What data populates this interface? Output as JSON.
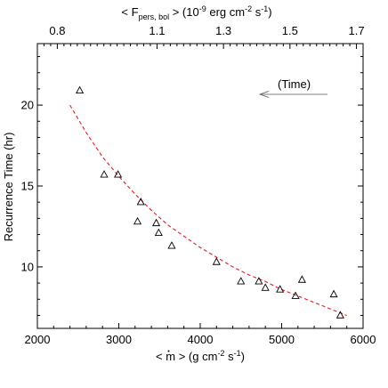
{
  "chart_data": {
    "type": "scatter",
    "title": "",
    "xlabel": {
      "prefix": "< ",
      "mdot": "m",
      "rest": " > (g cm",
      "sup1": "-2",
      "mid": " s",
      "sup2": "-1",
      "end": ")"
    },
    "ylabel": "Recurrence Time (hr)",
    "top_axis_label": {
      "start": "< F",
      "sub": "pers, bol",
      "mid": " > (10",
      "sup1": "-9",
      "mid2": " erg cm",
      "sup2": "-2",
      "mid3": " s",
      "sup3": "-1",
      "end": ")"
    },
    "xlim": [
      2000,
      6000
    ],
    "ylim": [
      6.2,
      23.8
    ],
    "top_xlim": [
      0.74,
      1.72
    ],
    "x_ticks": [
      2000,
      3000,
      4000,
      5000,
      6000
    ],
    "x_tick_labels": [
      "2000",
      "3000",
      "4000",
      "5000",
      "6000"
    ],
    "y_ticks": [
      10,
      15,
      20
    ],
    "y_tick_labels": [
      "10",
      "15",
      "20"
    ],
    "top_ticks": [
      0.8,
      1.1,
      1.3,
      1.5,
      1.7
    ],
    "top_tick_labels": [
      "0.8",
      "1.1",
      "1.3",
      "1.5",
      "1.7"
    ],
    "annotation": "(Time)",
    "annotation_position": "upper-right, with arrow pointing left",
    "grid": false,
    "legend": "none",
    "series": [
      {
        "marker": "triangle-open",
        "color": "#000000",
        "x": [
          2520,
          2820,
          2990,
          3270,
          3230,
          3460,
          3490,
          3650,
          4200,
          4500,
          4720,
          4800,
          4980,
          5170,
          5250,
          5640,
          5720
        ],
        "y": [
          20.9,
          15.7,
          15.7,
          14.0,
          12.8,
          12.7,
          12.1,
          11.3,
          10.3,
          9.1,
          9.1,
          8.7,
          8.6,
          8.2,
          9.2,
          8.3,
          7.0
        ]
      },
      {
        "type": "line",
        "style": "dashed",
        "color": "#e41a1c",
        "x": [
          2400,
          2600,
          2800,
          3000,
          3200,
          3400,
          3600,
          3800,
          4000,
          4200,
          4400,
          4600,
          4800,
          5000,
          5200,
          5400,
          5600,
          5800
        ],
        "y": [
          20.0,
          18.3,
          16.8,
          15.6,
          14.5,
          13.5,
          12.6,
          11.9,
          11.2,
          10.6,
          10.0,
          9.5,
          9.1,
          8.6,
          8.2,
          7.8,
          7.4,
          7.0
        ]
      }
    ]
  }
}
